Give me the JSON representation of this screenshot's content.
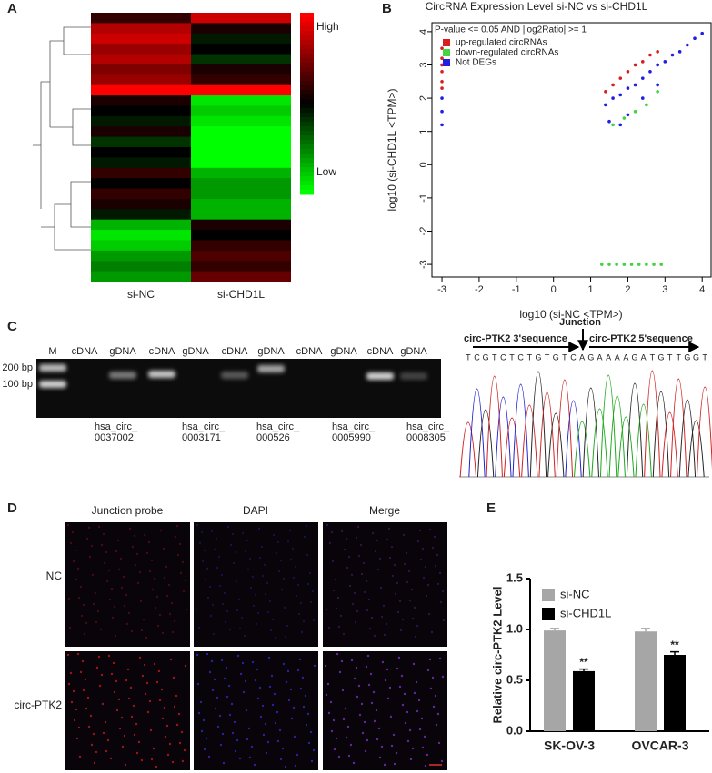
{
  "panels": [
    "A",
    "B",
    "C",
    "D",
    "E"
  ],
  "chart_data": [
    {
      "type": "heatmap",
      "columns": [
        "si-NC",
        "si-CHD1L"
      ],
      "zlim": [
        -1,
        1
      ],
      "colorbar_labels": [
        "High",
        "Low"
      ],
      "values": [
        [
          0.2,
          0.8
        ],
        [
          0.7,
          0.1
        ],
        [
          0.8,
          -0.1
        ],
        [
          0.6,
          0.0
        ],
        [
          0.7,
          -0.2
        ],
        [
          0.5,
          0.1
        ],
        [
          0.6,
          0.2
        ],
        [
          1.0,
          1.0
        ],
        [
          0.1,
          -0.9
        ],
        [
          0,
          -0.8
        ],
        [
          -0.1,
          -0.9
        ],
        [
          0.1,
          -1
        ],
        [
          -0.2,
          -1
        ],
        [
          0,
          -1
        ],
        [
          -0.1,
          -1
        ],
        [
          0.2,
          -0.7
        ],
        [
          0,
          -0.6
        ],
        [
          0.2,
          -0.6
        ],
        [
          0.1,
          -0.7
        ],
        [
          -0.1,
          -0.7
        ],
        [
          -0.7,
          0.1
        ],
        [
          -0.9,
          0
        ],
        [
          -0.8,
          0.2
        ],
        [
          -0.6,
          0.3
        ],
        [
          -0.5,
          0.2
        ],
        [
          -0.6,
          0.4
        ]
      ]
    },
    {
      "type": "scatter",
      "title": "CircRNA Expression Level si-NC vs si-CHD1L",
      "x_label": "log10 (si-NC <TPM>)",
      "y_label": "log10 (si-CHD1L <TPM>)",
      "legend_title": "P-value <= 0.05 AND |log2Ratio| >= 1",
      "legend": "upper left",
      "xlim": [
        -3.27,
        4.24
      ],
      "ylim": [
        -3.38,
        4.27
      ],
      "xticks": [
        -3,
        -2,
        -1,
        0,
        1,
        2,
        3,
        4
      ],
      "yticks": [
        -3,
        -2,
        -1,
        0,
        1,
        2,
        3,
        4
      ],
      "series": [
        {
          "name": "up-regulated circRNAs",
          "color": "#d62020",
          "x": [
            -3,
            -3,
            -3,
            -3,
            -3,
            -3,
            1.4,
            1.6,
            1.8,
            2.0,
            2.2,
            2.4,
            2.6,
            2.8
          ],
          "values": [
            3.5,
            3.2,
            3.0,
            2.8,
            2.5,
            2.3,
            2.2,
            2.4,
            2.6,
            2.8,
            3.0,
            3.1,
            3.3,
            3.4
          ]
        },
        {
          "name": "down-regulated circRNAs",
          "color": "#44d444",
          "x": [
            1.3,
            1.5,
            1.7,
            1.9,
            2.1,
            2.3,
            2.5,
            2.7,
            2.9,
            1.6,
            1.9,
            2.2,
            2.5,
            2.8
          ],
          "values": [
            -3,
            -3,
            -3,
            -3,
            -3,
            -3,
            -3,
            -3,
            -3,
            1.2,
            1.4,
            1.6,
            1.8,
            2.2
          ]
        },
        {
          "name": "Not DEGs",
          "color": "#2020e0",
          "x": [
            -3,
            -3,
            -3,
            1.4,
            1.6,
            1.8,
            2.0,
            2.2,
            2.4,
            2.6,
            2.8,
            3.0,
            3.2,
            3.4,
            3.6,
            3.8,
            4.0,
            2.0,
            2.4,
            2.8,
            1.5,
            1.8
          ],
          "values": [
            1.2,
            1.6,
            2.0,
            1.8,
            2.0,
            2.1,
            2.3,
            2.4,
            2.6,
            2.8,
            3.0,
            3.1,
            3.3,
            3.4,
            3.6,
            3.8,
            3.95,
            1.5,
            2.0,
            2.4,
            1.3,
            1.2
          ]
        }
      ]
    },
    {
      "type": "bar",
      "y_label": "Relative circ-PTK2 Level",
      "categories": [
        "SK-OV-3",
        "OVCAR-3"
      ],
      "legend": "upper left",
      "ylim": [
        0,
        1.5
      ],
      "yticks": [
        {
          "value": 0,
          "label": "0.0"
        },
        0.5,
        {
          "value": 1,
          "label": "1.0"
        },
        1.5
      ],
      "series": [
        {
          "name": "si-NC",
          "color": "#a6a6a6",
          "values": [
            0.99,
            0.98
          ],
          "errors": [
            0.02,
            0.03
          ]
        },
        {
          "name": "si-CHD1L",
          "color": "#000000",
          "values": [
            0.59,
            0.75
          ],
          "errors": [
            0.02,
            0.03
          ],
          "significance": [
            "**",
            "**"
          ]
        }
      ]
    }
  ],
  "gel": {
    "lanes": [
      "M",
      "cDNA",
      "gDNA",
      "cDNA",
      "gDNA",
      "cDNA",
      "gDNA",
      "cDNA",
      "gDNA",
      "cDNA",
      "gDNA"
    ],
    "size_markers": [
      "200 bp",
      "100 bp"
    ],
    "samples": [
      [
        "hsa_circ_",
        "0037002"
      ],
      [
        "hsa_circ_",
        "0003171"
      ],
      [
        "hsa_circ_",
        "000526"
      ],
      [
        "hsa_circ_",
        "0005990"
      ],
      [
        "hsa_circ_",
        "0008305"
      ]
    ]
  },
  "chromatogram": {
    "junction": "Junction",
    "left": "circ-PTK2  3'sequence",
    "right": "circ-PTK2  5'sequence",
    "sequence": [
      "T",
      "C",
      "G",
      "T",
      "C",
      "T",
      "C",
      "T",
      "G",
      "T",
      "G",
      "T",
      "C",
      "A",
      "G",
      "A",
      "A",
      "A",
      "A",
      "G",
      "A",
      "T",
      "G",
      "T",
      "T",
      "G",
      "G",
      "T"
    ]
  },
  "fish": {
    "columns": [
      "Junction probe",
      "DAPI",
      "Merge"
    ],
    "rows": [
      "NC",
      "circ-PTK2"
    ]
  }
}
